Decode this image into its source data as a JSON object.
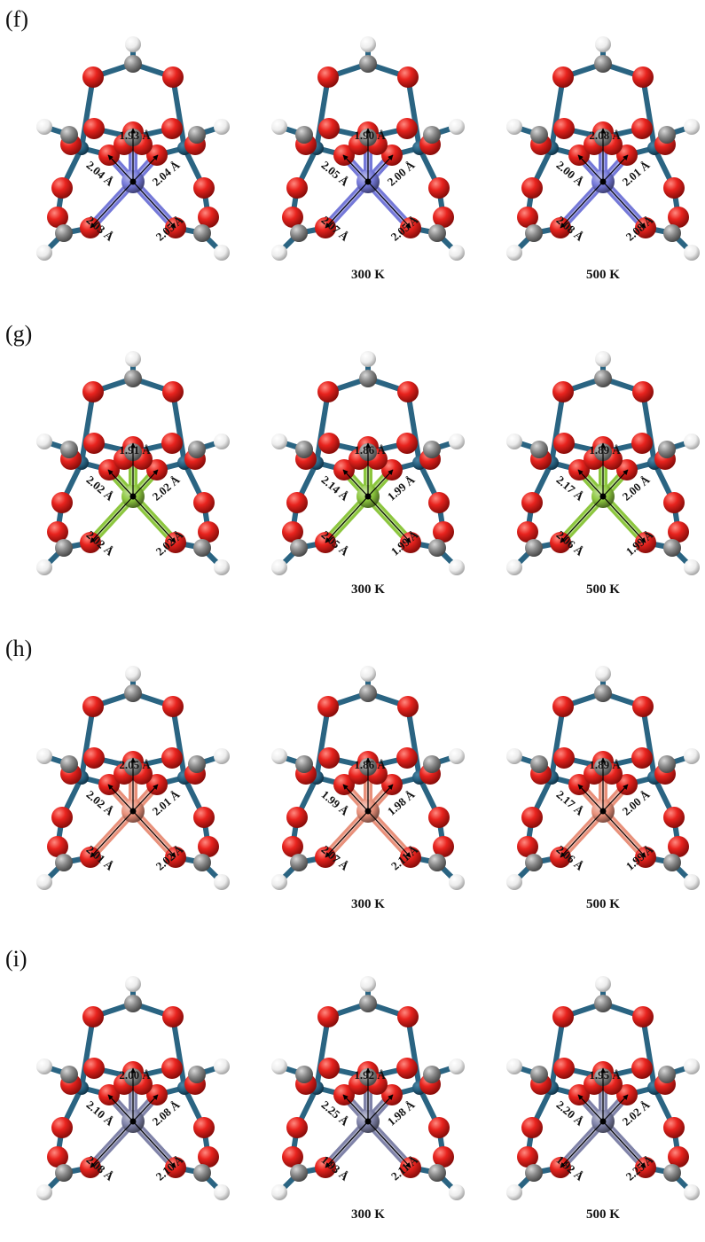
{
  "colors": {
    "oxygen": "#e8231e",
    "carbon": "#8a8a8a",
    "hydrogen": "#f2f2f2",
    "metal_node": "#235a78",
    "bond": "#2a6482"
  },
  "panels": [
    {
      "label": "(f)",
      "center_color": "#7478d8",
      "structures": [
        {
          "temp": "",
          "bonds": {
            "top": "1.93 Å",
            "left": "2.04 Å",
            "right": "2.04 Å",
            "bottom_left": "2.03 Å",
            "bottom_right": "2.05 Å"
          }
        },
        {
          "temp": "300 K",
          "bonds": {
            "top": "1.90 Å",
            "left": "2.05 Å",
            "right": "2.00 Å",
            "bottom_left": "2.07 Å",
            "bottom_right": "2.05 Å"
          }
        },
        {
          "temp": "500 K",
          "bonds": {
            "top": "2.08 Å",
            "left": "2.00 Å",
            "right": "2.01 Å",
            "bottom_left": "2.08 Å",
            "bottom_right": "2.08 Å"
          }
        }
      ]
    },
    {
      "label": "(g)",
      "center_color": "#8cc63e",
      "structures": [
        {
          "temp": "",
          "bonds": {
            "top": "1.91 Å",
            "left": "2.02 Å",
            "right": "2.02 Å",
            "bottom_left": "2.02 Å",
            "bottom_right": "2.02 Å"
          }
        },
        {
          "temp": "300 K",
          "bonds": {
            "top": "1.86 Å",
            "left": "2.14 Å",
            "right": "1.99 Å",
            "bottom_left": "2.05 Å",
            "bottom_right": "1.99 Å"
          }
        },
        {
          "temp": "500 K",
          "bonds": {
            "top": "1.89 Å",
            "left": "2.17 Å",
            "right": "2.00 Å",
            "bottom_left": "2.06 Å",
            "bottom_right": "1.99 Å"
          }
        }
      ]
    },
    {
      "label": "(h)",
      "center_color": "#e8907a",
      "structures": [
        {
          "temp": "",
          "bonds": {
            "top": "2.05 Å",
            "left": "2.02 Å",
            "right": "2.01 Å",
            "bottom_left": "2.01 Å",
            "bottom_right": "2.02 Å"
          }
        },
        {
          "temp": "300 K",
          "bonds": {
            "top": "1.86 Å",
            "left": "1.99 Å",
            "right": "1.98 Å",
            "bottom_left": "2.07 Å",
            "bottom_right": "2.11 Å"
          }
        },
        {
          "temp": "500 K",
          "bonds": {
            "top": "1.89 Å",
            "left": "2.17 Å",
            "right": "2.00 Å",
            "bottom_left": "2.06 Å",
            "bottom_right": "1.99 Å"
          }
        }
      ]
    },
    {
      "label": "(i)",
      "center_color": "#7f82a8",
      "structures": [
        {
          "temp": "",
          "bonds": {
            "top": "2.00 Å",
            "left": "2.10 Å",
            "right": "2.08 Å",
            "bottom_left": "2.08 Å",
            "bottom_right": "2.10 Å"
          }
        },
        {
          "temp": "300 K",
          "bonds": {
            "top": "1.92 Å",
            "left": "2.25 Å",
            "right": "1.98 Å",
            "bottom_left": "1.93 Å",
            "bottom_right": "2.11 Å"
          }
        },
        {
          "temp": "500 K",
          "bonds": {
            "top": "1.95 Å",
            "left": "2.20 Å",
            "right": "2.02 Å",
            "bottom_left": "1.92 Å",
            "bottom_right": "2.25 Å"
          }
        }
      ]
    }
  ]
}
